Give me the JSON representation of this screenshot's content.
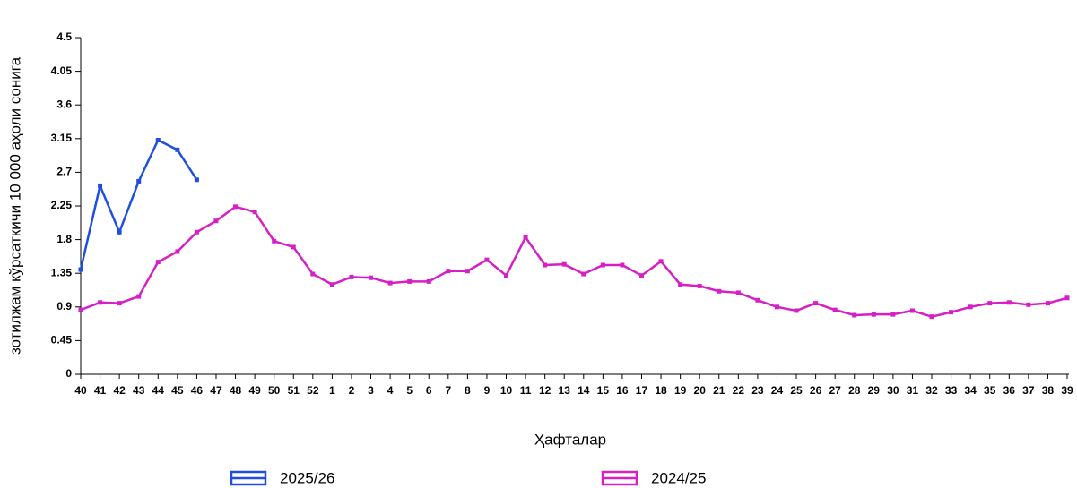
{
  "chart_data": {
    "type": "line",
    "y_label": "зотилжам кўрсаткичи 10 000 аҳоли сонига",
    "x_label": "Ҳафталар",
    "categories": [
      "40",
      "41",
      "42",
      "43",
      "44",
      "45",
      "46",
      "47",
      "48",
      "49",
      "50",
      "51",
      "52",
      "1",
      "2",
      "3",
      "4",
      "5",
      "6",
      "7",
      "8",
      "9",
      "10",
      "11",
      "12",
      "13",
      "14",
      "15",
      "16",
      "17",
      "18",
      "19",
      "20",
      "21",
      "22",
      "23",
      "24",
      "25",
      "26",
      "27",
      "28",
      "29",
      "30",
      "31",
      "32",
      "33",
      "34",
      "35",
      "36",
      "37",
      "38",
      "39"
    ],
    "series": [
      {
        "name": "2025/26",
        "color": "#1f4fe0",
        "values": [
          1.4,
          2.52,
          1.9,
          2.58,
          3.13,
          3.0,
          2.6,
          null,
          null,
          null,
          null,
          null,
          null,
          null,
          null,
          null,
          null,
          null,
          null,
          null,
          null,
          null,
          null,
          null,
          null,
          null,
          null,
          null,
          null,
          null,
          null,
          null,
          null,
          null,
          null,
          null,
          null,
          null,
          null,
          null,
          null,
          null,
          null,
          null,
          null,
          null,
          null,
          null,
          null,
          null,
          null,
          null
        ]
      },
      {
        "name": "2024/25",
        "color": "#d61fc4",
        "values": [
          0.86,
          0.96,
          0.95,
          1.04,
          1.5,
          1.64,
          1.9,
          2.05,
          2.24,
          2.17,
          1.78,
          1.7,
          1.34,
          1.2,
          1.3,
          1.29,
          1.22,
          1.24,
          1.24,
          1.38,
          1.38,
          1.53,
          1.32,
          1.83,
          1.46,
          1.47,
          1.34,
          1.46,
          1.46,
          1.32,
          1.51,
          1.2,
          1.18,
          1.11,
          1.09,
          0.99,
          0.9,
          0.85,
          0.95,
          0.86,
          0.79,
          0.8,
          0.8,
          0.85,
          0.77,
          0.83,
          0.9,
          0.95,
          0.96,
          0.93,
          0.95,
          1.02
        ]
      }
    ],
    "ylim": [
      0,
      4.5
    ],
    "yticks": [
      0,
      0.45,
      0.9,
      1.35,
      1.8,
      2.25,
      2.7,
      3.15,
      3.6,
      4.05,
      4.5
    ]
  }
}
